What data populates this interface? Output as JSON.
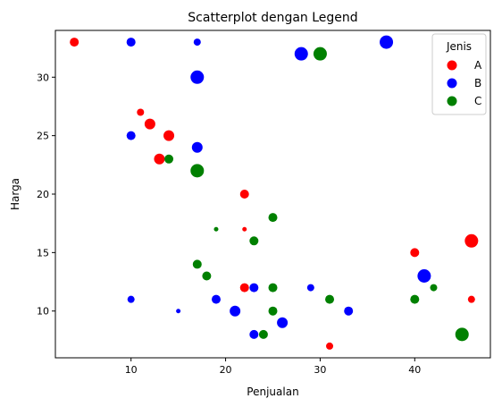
{
  "chart_data": {
    "type": "scatter",
    "title": "Scatterplot dengan Legend",
    "xlabel": "Penjualan",
    "ylabel": "Harga",
    "xlim": [
      2,
      48
    ],
    "ylim": [
      6,
      34
    ],
    "x_ticks": [
      10,
      20,
      30,
      40
    ],
    "y_ticks": [
      10,
      15,
      20,
      25,
      30
    ],
    "grid": false,
    "legend": {
      "title": "Jenis",
      "placement": "top-right"
    },
    "series": [
      {
        "name": "A",
        "color": "#ff0000",
        "points": [
          {
            "x": 4,
            "y": 33,
            "size": 2
          },
          {
            "x": 11,
            "y": 27,
            "size": 1
          },
          {
            "x": 12,
            "y": 26,
            "size": 3
          },
          {
            "x": 14,
            "y": 25,
            "size": 3
          },
          {
            "x": 13,
            "y": 23,
            "size": 3
          },
          {
            "x": 22,
            "y": 20,
            "size": 2
          },
          {
            "x": 22,
            "y": 17,
            "size": 0
          },
          {
            "x": 22,
            "y": 12,
            "size": 2
          },
          {
            "x": 31,
            "y": 7,
            "size": 1
          },
          {
            "x": 40,
            "y": 15,
            "size": 2
          },
          {
            "x": 46,
            "y": 16,
            "size": 4
          },
          {
            "x": 46,
            "y": 11,
            "size": 1
          }
        ]
      },
      {
        "name": "B",
        "color": "#0000ff",
        "points": [
          {
            "x": 10,
            "y": 33,
            "size": 2
          },
          {
            "x": 17,
            "y": 33,
            "size": 1
          },
          {
            "x": 37,
            "y": 33,
            "size": 4
          },
          {
            "x": 28,
            "y": 32,
            "size": 4
          },
          {
            "x": 17,
            "y": 30,
            "size": 4
          },
          {
            "x": 10,
            "y": 25,
            "size": 2
          },
          {
            "x": 17,
            "y": 24,
            "size": 3
          },
          {
            "x": 10,
            "y": 11,
            "size": 1
          },
          {
            "x": 15,
            "y": 10,
            "size": 0
          },
          {
            "x": 19,
            "y": 11,
            "size": 2
          },
          {
            "x": 21,
            "y": 10,
            "size": 3
          },
          {
            "x": 23,
            "y": 12,
            "size": 2
          },
          {
            "x": 23,
            "y": 8,
            "size": 2
          },
          {
            "x": 26,
            "y": 9,
            "size": 3
          },
          {
            "x": 29,
            "y": 12,
            "size": 1
          },
          {
            "x": 33,
            "y": 10,
            "size": 2
          },
          {
            "x": 41,
            "y": 13,
            "size": 4
          }
        ]
      },
      {
        "name": "C",
        "color": "#008000",
        "points": [
          {
            "x": 30,
            "y": 32,
            "size": 4
          },
          {
            "x": 14,
            "y": 23,
            "size": 2
          },
          {
            "x": 17,
            "y": 22,
            "size": 4
          },
          {
            "x": 19,
            "y": 17,
            "size": 0
          },
          {
            "x": 25,
            "y": 18,
            "size": 2
          },
          {
            "x": 23,
            "y": 16,
            "size": 2
          },
          {
            "x": 17,
            "y": 14,
            "size": 2
          },
          {
            "x": 18,
            "y": 13,
            "size": 2
          },
          {
            "x": 25,
            "y": 12,
            "size": 2
          },
          {
            "x": 31,
            "y": 11,
            "size": 2
          },
          {
            "x": 25,
            "y": 10,
            "size": 2
          },
          {
            "x": 24,
            "y": 8,
            "size": 2
          },
          {
            "x": 40,
            "y": 11,
            "size": 2
          },
          {
            "x": 42,
            "y": 12,
            "size": 1
          },
          {
            "x": 45,
            "y": 8,
            "size": 4
          }
        ]
      }
    ]
  }
}
